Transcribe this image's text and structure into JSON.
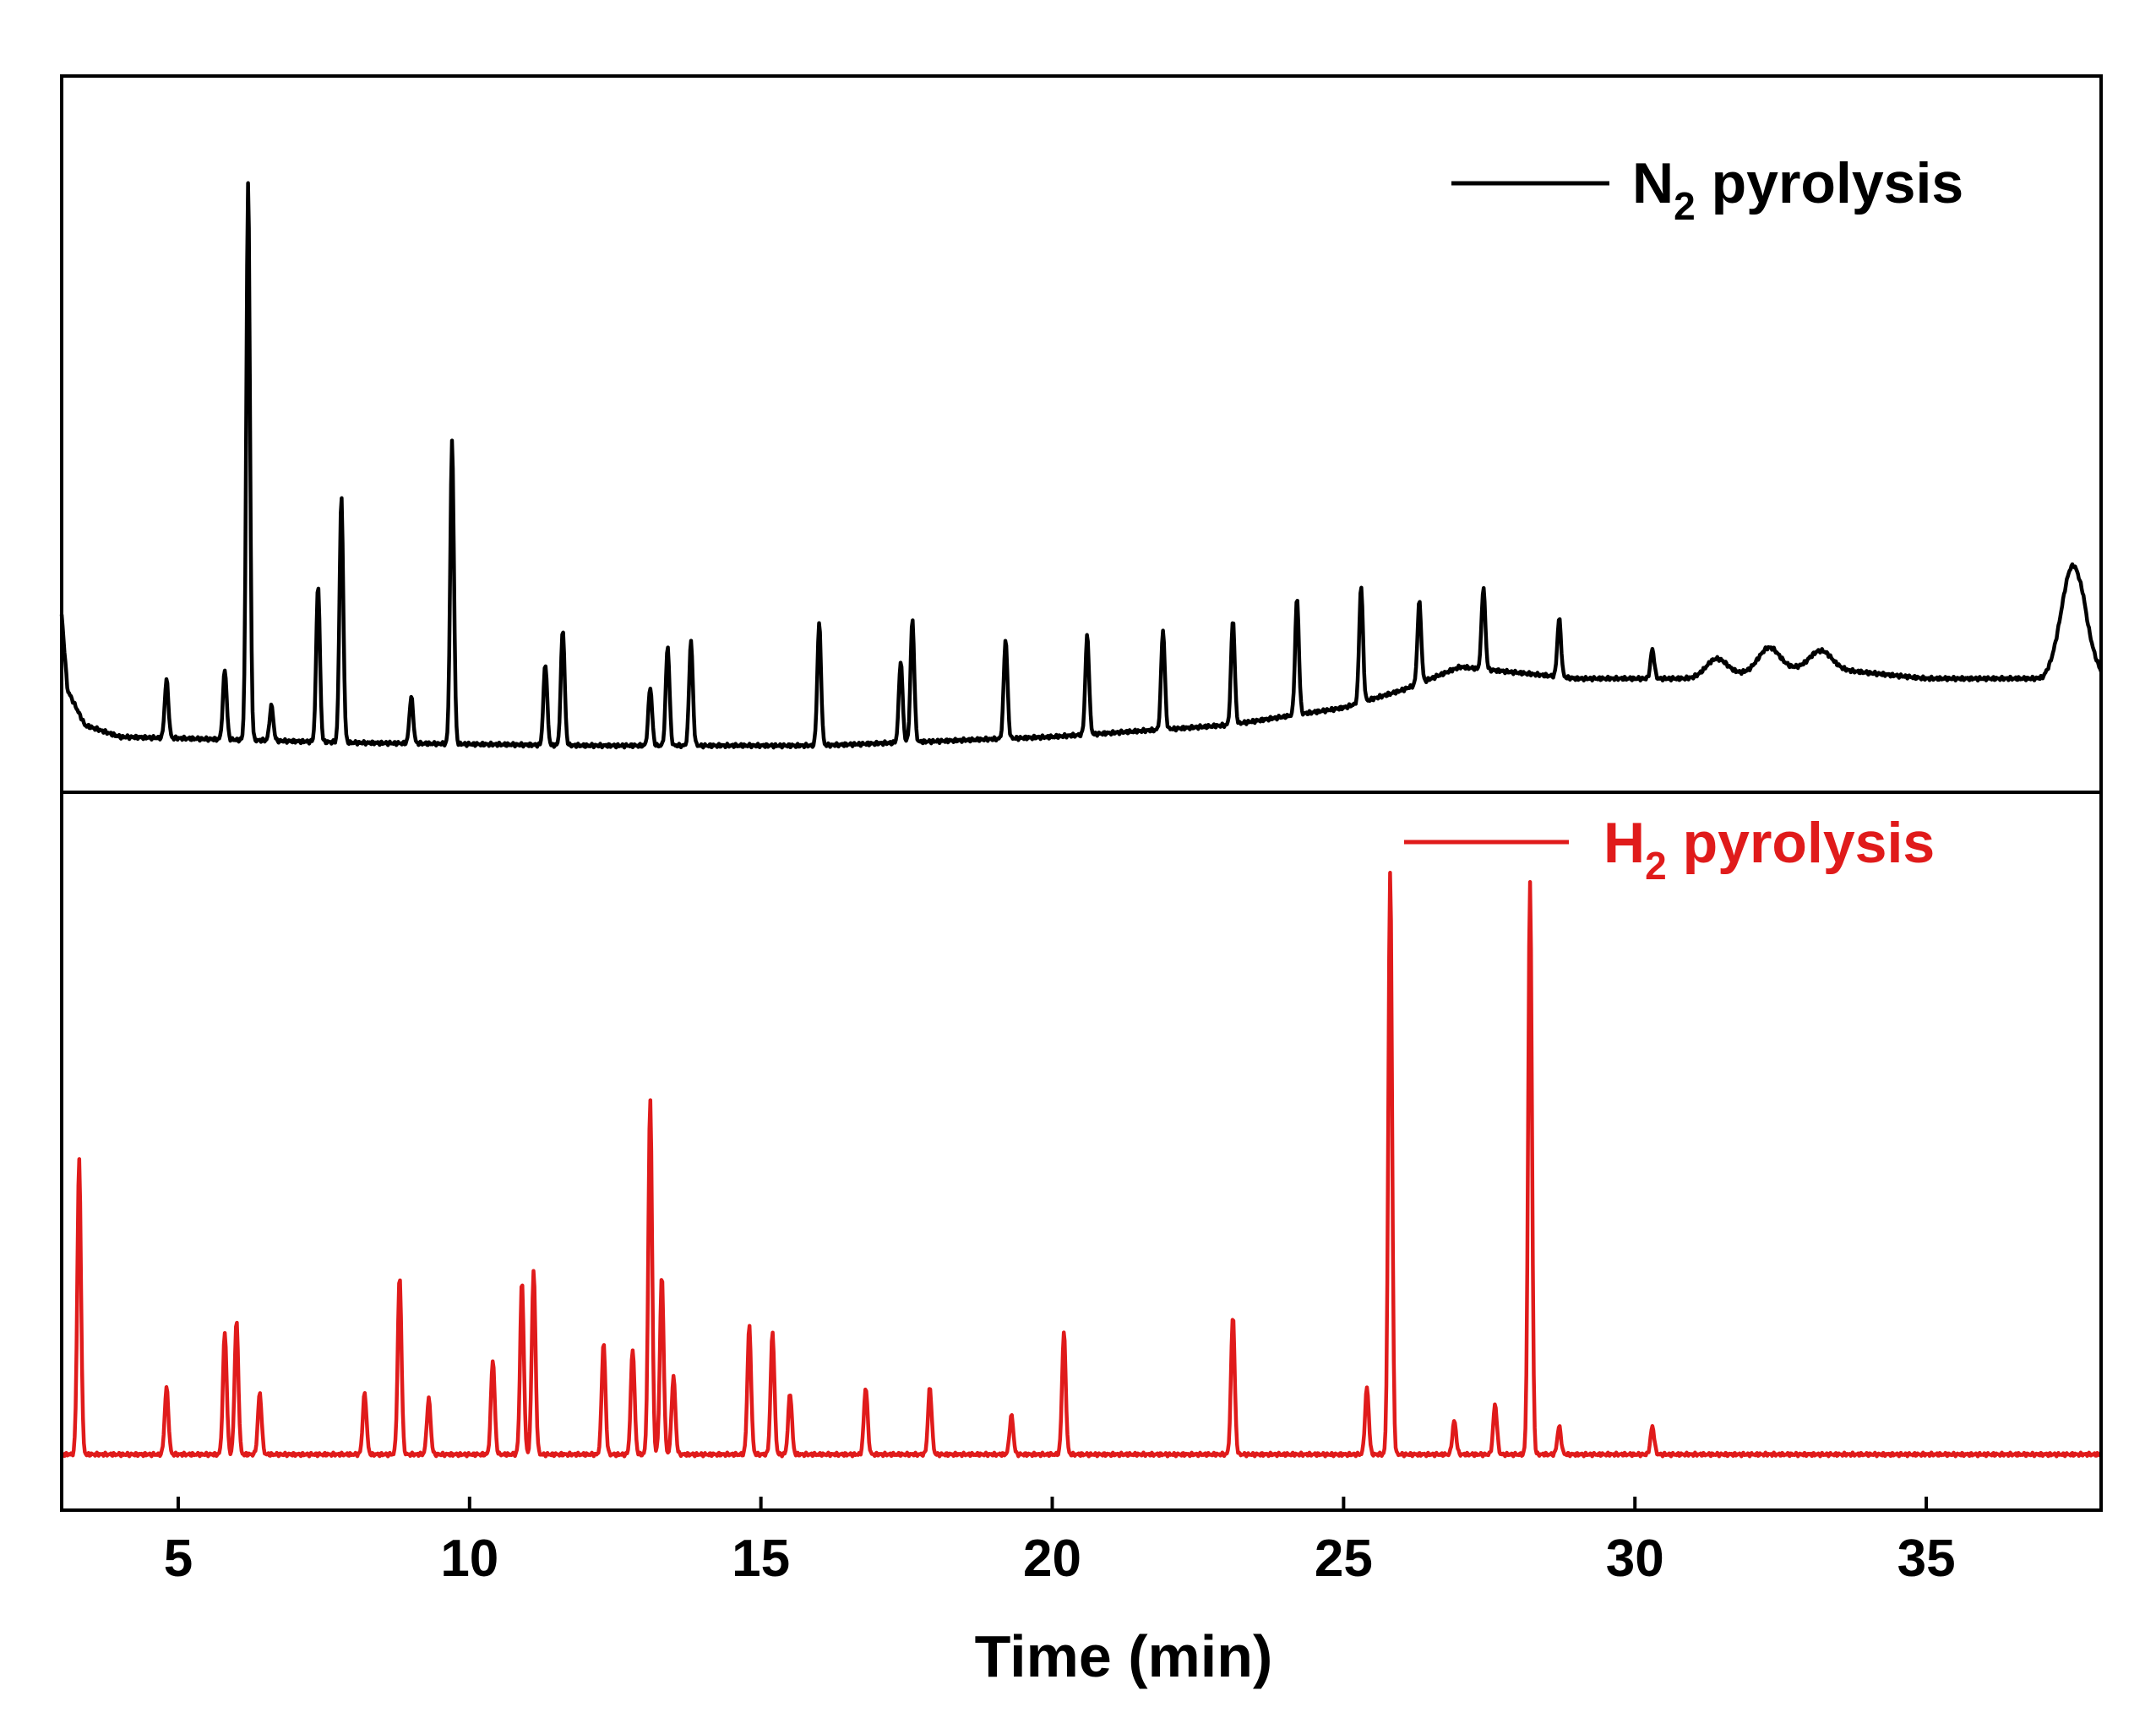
{
  "chart_data": {
    "type": "line",
    "title": "",
    "xlabel": "Time (min)",
    "ylabel": "",
    "xlim": [
      3,
      38
    ],
    "xticks": [
      5,
      10,
      15,
      20,
      25,
      30,
      35
    ],
    "xtick_labels": [
      "5",
      "10",
      "15",
      "20",
      "25",
      "30",
      "35"
    ],
    "ylim": [
      0,
      100
    ],
    "panels": [
      {
        "name": "top",
        "legend": {
          "main": "N",
          "sub": "2",
          "rest": " pyrolysis",
          "color": "#000000"
        },
        "series": {
          "name": "N2 pyrolysis",
          "color": "#000000",
          "baseline": [
            [
              3.0,
              25
            ],
            [
              3.1,
              12
            ],
            [
              3.4,
              6
            ],
            [
              4,
              4
            ],
            [
              8,
              3
            ],
            [
              12,
              2.5
            ],
            [
              16,
              2.5
            ],
            [
              20,
              4
            ],
            [
              23,
              6
            ],
            [
              25,
              9
            ],
            [
              26,
              12
            ],
            [
              27,
              16
            ],
            [
              28,
              15
            ],
            [
              29,
              14
            ],
            [
              31,
              14
            ],
            [
              33,
              16
            ],
            [
              35,
              14
            ],
            [
              37,
              14
            ],
            [
              37.7,
              20
            ],
            [
              38,
              15
            ]
          ],
          "peaks": [
            [
              4.8,
              10
            ],
            [
              5.8,
              12
            ],
            [
              6.2,
              96
            ],
            [
              6.6,
              6
            ],
            [
              7.4,
              27
            ],
            [
              7.8,
              42
            ],
            [
              9.0,
              8
            ],
            [
              9.7,
              52
            ],
            [
              11.3,
              14
            ],
            [
              11.6,
              20
            ],
            [
              13.1,
              10
            ],
            [
              13.4,
              17
            ],
            [
              13.8,
              18
            ],
            [
              16.0,
              21
            ],
            [
              17.4,
              14
            ],
            [
              17.6,
              21
            ],
            [
              19.2,
              17
            ],
            [
              20.6,
              17
            ],
            [
              21.9,
              17
            ],
            [
              23.1,
              18
            ],
            [
              24.2,
              20
            ],
            [
              25.3,
              20
            ],
            [
              26.3,
              14
            ],
            [
              27.4,
              14
            ],
            [
              28.7,
              10
            ],
            [
              30.3,
              5
            ],
            [
              31.4,
              3
            ],
            [
              32.3,
              4
            ],
            [
              33.2,
              3
            ],
            [
              37.5,
              15
            ]
          ]
        }
      },
      {
        "name": "bottom",
        "legend": {
          "main": "H",
          "sub": "2",
          "rest": " pyrolysis",
          "color": "#e01b1b"
        },
        "series": {
          "name": "H2 pyrolysis",
          "color": "#e01b1b",
          "baseline": [
            [
              3.0,
              0
            ],
            [
              38,
              0
            ]
          ],
          "peaks": [
            [
              3.3,
              53
            ],
            [
              4.8,
              12
            ],
            [
              5.8,
              22
            ],
            [
              6.0,
              24
            ],
            [
              6.4,
              11
            ],
            [
              8.2,
              11
            ],
            [
              8.8,
              32
            ],
            [
              9.3,
              10
            ],
            [
              10.4,
              17
            ],
            [
              10.9,
              31
            ],
            [
              11.1,
              33
            ],
            [
              12.3,
              20
            ],
            [
              12.8,
              19
            ],
            [
              13.1,
              64
            ],
            [
              13.3,
              32
            ],
            [
              13.5,
              14
            ],
            [
              14.8,
              23
            ],
            [
              15.2,
              22
            ],
            [
              15.5,
              11
            ],
            [
              16.8,
              12
            ],
            [
              17.9,
              12
            ],
            [
              19.3,
              7
            ],
            [
              20.2,
              22
            ],
            [
              23.1,
              25
            ],
            [
              25.4,
              12
            ],
            [
              25.8,
              105
            ],
            [
              26.9,
              6
            ],
            [
              27.6,
              9
            ],
            [
              28.2,
              103
            ],
            [
              28.7,
              5
            ],
            [
              30.3,
              5
            ]
          ]
        }
      }
    ]
  }
}
